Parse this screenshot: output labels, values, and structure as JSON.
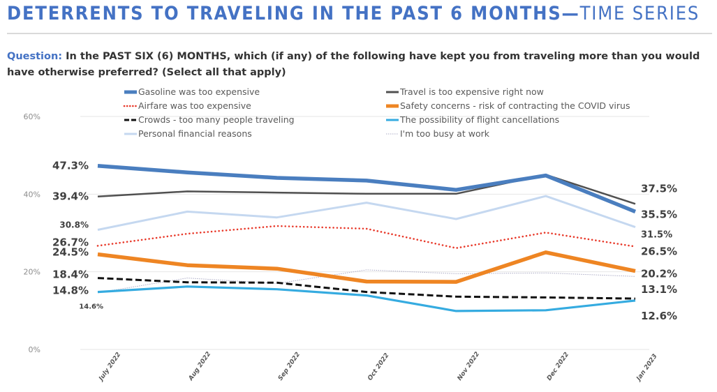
{
  "header": {
    "title_main": "DETERRENTS TO TRAVELING IN THE PAST 6 MONTHS—",
    "title_sub": "TIME SERIES"
  },
  "question": {
    "label": "Question:",
    "text": " In the PAST SIX (6) MONTHS, which (if any) of the following have kept you from traveling more than you would have otherwise preferred? (Select all that apply)"
  },
  "chart_data": {
    "type": "line",
    "title": "Deterrents to Traveling in the Past 6 Months — Time Series",
    "xlabel": "",
    "ylabel": "",
    "x": [
      "July 2022",
      "Aug 2022",
      "Sep 2022",
      "Oct 2022",
      "Nov 2022",
      "Dec 2022",
      "Jan 2023"
    ],
    "ylim": [
      0,
      60
    ],
    "yticks": [
      0,
      20,
      40,
      60
    ],
    "ytick_labels": [
      "0%",
      "20%",
      "40%",
      "60%"
    ],
    "grid": true,
    "legend_position": "top",
    "series": [
      {
        "name": "Gasoline was too expensive",
        "color": "#4a7ebf",
        "style": "thick-solid",
        "values": [
          47.3,
          45.6,
          44.2,
          43.5,
          41.1,
          44.8,
          35.5
        ],
        "first_label": "47.3%",
        "last_label": "35.5%"
      },
      {
        "name": "Travel is too expensive right now",
        "color": "#505050",
        "style": "solid",
        "values": [
          39.4,
          40.7,
          40.4,
          40.1,
          40.1,
          45.0,
          37.5
        ],
        "first_label": "39.4%",
        "last_label": "37.5%"
      },
      {
        "name": "Airfare was too expensive",
        "color": "#e8392a",
        "style": "dotted",
        "values": [
          26.7,
          29.8,
          31.8,
          31.1,
          26.1,
          30.1,
          26.5
        ],
        "first_label": "26.7%",
        "last_label": "26.5%"
      },
      {
        "name": "Safety concerns - risk of contracting the COVID virus",
        "color": "#ee8523",
        "style": "thick-solid",
        "values": [
          24.5,
          21.7,
          20.8,
          17.5,
          17.4,
          25.0,
          20.2
        ],
        "first_label": "24.5%",
        "last_label": "20.2%"
      },
      {
        "name": "Crowds - too many people traveling",
        "color": "#111111",
        "style": "dashed",
        "values": [
          18.4,
          17.3,
          17.2,
          14.8,
          13.6,
          13.4,
          13.1
        ],
        "first_label": "18.4%",
        "last_label": "13.1%"
      },
      {
        "name": "The possibility of flight cancellations",
        "color": "#35abe0",
        "style": "solid",
        "values": [
          14.8,
          16.2,
          15.5,
          13.9,
          9.9,
          10.1,
          12.6
        ],
        "first_label": "14.8%",
        "last_label": "12.6%"
      },
      {
        "name": "Personal financial reasons",
        "color": "#c5d8f0",
        "style": "solid",
        "values": [
          30.8,
          35.5,
          34.0,
          37.8,
          33.6,
          39.5,
          31.5
        ],
        "first_label": "30.8%",
        "last_label": "31.5%"
      },
      {
        "name": "I'm too busy at work",
        "color": "#a9a9c4",
        "style": "thin-dotted",
        "values": [
          14.6,
          18.4,
          17.0,
          20.5,
          19.5,
          19.7,
          18.8
        ],
        "first_label": "14.6%",
        "last_label": ""
      }
    ]
  }
}
